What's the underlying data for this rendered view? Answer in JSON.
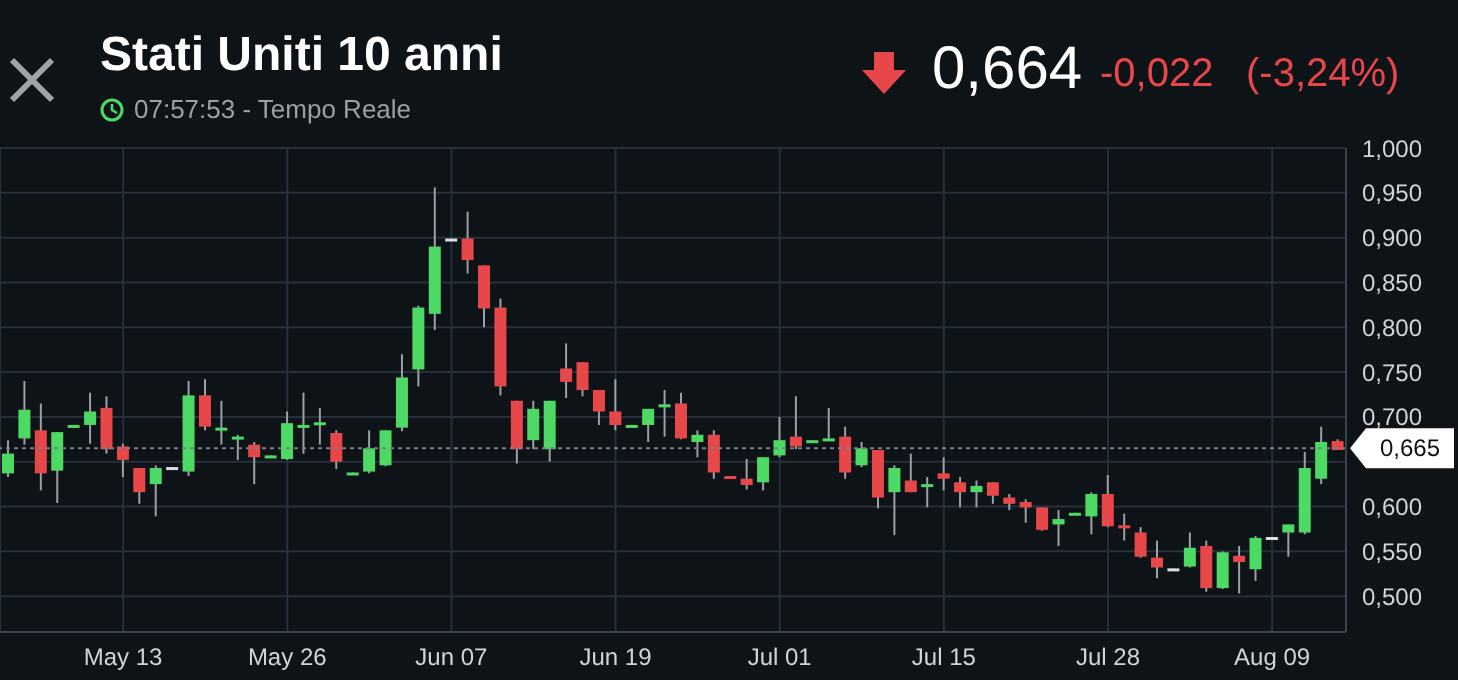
{
  "chart_data": {
    "type": "candlestick",
    "title": "Stati Uniti 10 anni",
    "subtitle": "07:57:53 - Tempo Reale",
    "annotations": [
      "0,664",
      "-0,022",
      "(-3,24%)"
    ],
    "categories": [
      null,
      null,
      null,
      null,
      null,
      null,
      null,
      "May 13",
      null,
      null,
      null,
      null,
      null,
      null,
      null,
      null,
      null,
      "May 26",
      null,
      null,
      null,
      null,
      null,
      null,
      null,
      null,
      null,
      "Jun 07",
      null,
      null,
      null,
      null,
      null,
      null,
      null,
      null,
      null,
      "Jun 19",
      null,
      null,
      null,
      null,
      null,
      null,
      null,
      null,
      null,
      "Jul 01",
      null,
      null,
      null,
      null,
      null,
      null,
      null,
      null,
      null,
      "Jul 15",
      null,
      null,
      null,
      null,
      null,
      null,
      null,
      null,
      null,
      "Jul 28",
      null,
      null,
      null,
      null,
      null,
      null,
      null,
      null,
      null,
      "Aug 09",
      null,
      null,
      null,
      null
    ],
    "ohlc": [
      [
        0.637,
        0.674,
        0.633,
        0.659
      ],
      [
        0.676,
        0.74,
        0.669,
        0.708
      ],
      [
        0.685,
        0.715,
        0.618,
        0.637
      ],
      [
        0.64,
        0.683,
        0.604,
        0.683
      ],
      [
        0.689,
        0.691,
        0.689,
        0.691
      ],
      [
        0.691,
        0.727,
        0.67,
        0.706
      ],
      [
        0.71,
        0.723,
        0.659,
        0.664
      ],
      [
        0.667,
        0.67,
        0.633,
        0.652
      ],
      [
        0.643,
        0.643,
        0.603,
        0.616
      ],
      [
        0.625,
        0.646,
        0.589,
        0.643
      ],
      [
        0.643,
        0.644,
        0.643,
        0.644
      ],
      [
        0.639,
        0.74,
        0.634,
        0.724
      ],
      [
        0.724,
        0.742,
        0.685,
        0.689
      ],
      [
        0.685,
        0.718,
        0.669,
        0.688
      ],
      [
        0.676,
        0.68,
        0.652,
        0.678
      ],
      [
        0.669,
        0.672,
        0.625,
        0.655
      ],
      [
        0.655,
        0.657,
        0.655,
        0.657
      ],
      [
        0.653,
        0.706,
        0.652,
        0.693
      ],
      [
        0.689,
        0.727,
        0.659,
        0.691
      ],
      [
        0.691,
        0.71,
        0.669,
        0.694
      ],
      [
        0.682,
        0.685,
        0.642,
        0.65
      ],
      [
        0.635,
        0.638,
        0.635,
        0.638
      ],
      [
        0.639,
        0.685,
        0.637,
        0.665
      ],
      [
        0.646,
        0.685,
        0.645,
        0.685
      ],
      [
        0.688,
        0.77,
        0.684,
        0.744
      ],
      [
        0.753,
        0.824,
        0.734,
        0.822
      ],
      [
        0.815,
        0.956,
        0.797,
        0.89
      ],
      [
        0.898,
        0.899,
        0.898,
        0.899
      ],
      [
        0.899,
        0.929,
        0.86,
        0.875
      ],
      [
        0.869,
        0.869,
        0.8,
        0.821
      ],
      [
        0.822,
        0.832,
        0.724,
        0.734
      ],
      [
        0.718,
        0.718,
        0.648,
        0.664
      ],
      [
        0.674,
        0.718,
        0.664,
        0.709
      ],
      [
        0.664,
        0.718,
        0.65,
        0.718
      ],
      [
        0.754,
        0.782,
        0.721,
        0.739
      ],
      [
        0.761,
        0.761,
        0.723,
        0.73
      ],
      [
        0.73,
        0.73,
        0.691,
        0.706
      ],
      [
        0.706,
        0.742,
        0.685,
        0.691
      ],
      [
        0.689,
        0.691,
        0.689,
        0.691
      ],
      [
        0.691,
        0.709,
        0.672,
        0.709
      ],
      [
        0.712,
        0.73,
        0.678,
        0.714
      ],
      [
        0.715,
        0.727,
        0.675,
        0.676
      ],
      [
        0.672,
        0.685,
        0.655,
        0.68
      ],
      [
        0.68,
        0.685,
        0.631,
        0.638
      ],
      [
        0.634,
        0.634,
        0.632,
        0.632
      ],
      [
        0.631,
        0.653,
        0.619,
        0.624
      ],
      [
        0.627,
        0.655,
        0.618,
        0.655
      ],
      [
        0.657,
        0.7,
        0.655,
        0.674
      ],
      [
        0.678,
        0.723,
        0.664,
        0.667
      ],
      [
        0.672,
        0.674,
        0.672,
        0.674
      ],
      [
        0.674,
        0.71,
        0.674,
        0.676
      ],
      [
        0.678,
        0.689,
        0.631,
        0.638
      ],
      [
        0.646,
        0.672,
        0.644,
        0.665
      ],
      [
        0.663,
        0.663,
        0.598,
        0.61
      ],
      [
        0.616,
        0.646,
        0.568,
        0.643
      ],
      [
        0.629,
        0.659,
        0.616,
        0.616
      ],
      [
        0.623,
        0.633,
        0.599,
        0.625
      ],
      [
        0.637,
        0.655,
        0.618,
        0.631
      ],
      [
        0.627,
        0.633,
        0.599,
        0.616
      ],
      [
        0.616,
        0.629,
        0.599,
        0.623
      ],
      [
        0.627,
        0.627,
        0.603,
        0.612
      ],
      [
        0.61,
        0.614,
        0.596,
        0.603
      ],
      [
        0.605,
        0.608,
        0.582,
        0.599
      ],
      [
        0.599,
        0.599,
        0.573,
        0.574
      ],
      [
        0.58,
        0.596,
        0.556,
        0.586
      ],
      [
        0.591,
        0.593,
        0.591,
        0.593
      ],
      [
        0.589,
        0.616,
        0.569,
        0.614
      ],
      [
        0.614,
        0.635,
        0.577,
        0.578
      ],
      [
        0.579,
        0.592,
        0.562,
        0.577
      ],
      [
        0.571,
        0.577,
        0.543,
        0.544
      ],
      [
        0.543,
        0.562,
        0.52,
        0.532
      ],
      [
        0.529,
        0.531,
        0.529,
        0.531
      ],
      [
        0.533,
        0.571,
        0.532,
        0.554
      ],
      [
        0.556,
        0.562,
        0.505,
        0.509
      ],
      [
        0.509,
        0.55,
        0.508,
        0.549
      ],
      [
        0.545,
        0.556,
        0.503,
        0.538
      ],
      [
        0.53,
        0.567,
        0.517,
        0.565
      ],
      [
        0.565,
        0.566,
        0.565,
        0.566
      ],
      [
        0.571,
        0.58,
        0.544,
        0.58
      ],
      [
        0.571,
        0.661,
        0.569,
        0.643
      ],
      [
        0.631,
        0.689,
        0.625,
        0.672
      ],
      [
        0.673,
        0.675,
        0.663,
        0.663
      ]
    ],
    "colors": [
      "#4cd964",
      "#4cd964",
      "#e8474a",
      "#4cd964",
      "#4cd964",
      "#4cd964",
      "#e8474a",
      "#e8474a",
      "#e8474a",
      "#4cd964",
      "#dddddd",
      "#4cd964",
      "#e8474a",
      "#4cd964",
      "#4cd964",
      "#e8474a",
      "#4cd964",
      "#4cd964",
      "#4cd964",
      "#4cd964",
      "#e8474a",
      "#4cd964",
      "#4cd964",
      "#4cd964",
      "#4cd964",
      "#4cd964",
      "#4cd964",
      "#dddddd",
      "#e8474a",
      "#e8474a",
      "#e8474a",
      "#e8474a",
      "#4cd964",
      "#4cd964",
      "#e8474a",
      "#e8474a",
      "#e8474a",
      "#e8474a",
      "#4cd964",
      "#4cd964",
      "#4cd964",
      "#e8474a",
      "#4cd964",
      "#e8474a",
      "#e8474a",
      "#e8474a",
      "#4cd964",
      "#4cd964",
      "#e8474a",
      "#4cd964",
      "#4cd964",
      "#e8474a",
      "#4cd964",
      "#e8474a",
      "#4cd964",
      "#e8474a",
      "#4cd964",
      "#e8474a",
      "#e8474a",
      "#4cd964",
      "#e8474a",
      "#e8474a",
      "#e8474a",
      "#e8474a",
      "#4cd964",
      "#4cd964",
      "#4cd964",
      "#e8474a",
      "#e8474a",
      "#e8474a",
      "#e8474a",
      "#dddddd",
      "#4cd964",
      "#e8474a",
      "#4cd964",
      "#e8474a",
      "#4cd964",
      "#dddddd",
      "#4cd964",
      "#4cd964",
      "#4cd964",
      "#e8474a"
    ],
    "ylim": [
      0.46,
      1.0
    ],
    "yticks": [
      {
        "value": 0.5,
        "label": "0,500"
      },
      {
        "value": 0.55,
        "label": "0,550"
      },
      {
        "value": 0.6,
        "label": "0,600"
      },
      {
        "value": 0.65,
        "label": null
      },
      {
        "value": 0.7,
        "label": "0,700"
      },
      {
        "value": 0.75,
        "label": "0,750"
      },
      {
        "value": 0.8,
        "label": "0,800"
      },
      {
        "value": 0.85,
        "label": "0,850"
      },
      {
        "value": 0.9,
        "label": "0,900"
      },
      {
        "value": 0.95,
        "label": "0,950"
      },
      {
        "value": 1.0,
        "label": "1,000"
      }
    ],
    "ref_lines": [
      {
        "axis": "y",
        "value": 0.665,
        "label": "0,665",
        "color": "#7a8088",
        "line_style": "dotted"
      }
    ],
    "grid": true
  }
}
